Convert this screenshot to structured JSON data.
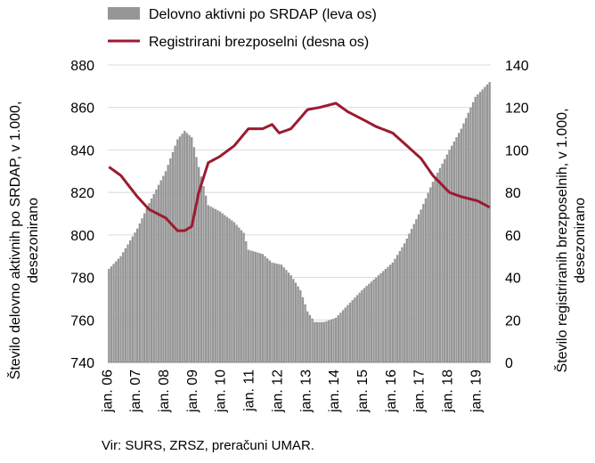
{
  "chart_data": {
    "type": "bar+line",
    "legend_position": "top",
    "grid": true,
    "source": "Vir: SURS, ZRSZ, preračuni UMAR.",
    "x_tick_labels": [
      "jan. 06",
      "jan. 07",
      "jan. 08",
      "jan. 09",
      "jan. 10",
      "jan. 11",
      "jan. 12",
      "jan. 13",
      "jan. 14",
      "jan. 15",
      "jan. 16",
      "jan. 17",
      "jan. 18",
      "jan. 19"
    ],
    "x_range": [
      "2006-01",
      "2019-06"
    ],
    "left_axis": {
      "label": "Število delovno aktivnih po SRDAP, v 1.000, desezonirano",
      "ylim": [
        740,
        880
      ],
      "ticks": [
        740,
        760,
        780,
        800,
        820,
        840,
        860,
        880
      ]
    },
    "right_axis": {
      "label": "Število registriranih brezposelnih, v 1.000, desezonirano",
      "ylim": [
        0,
        140
      ],
      "ticks": [
        0,
        20,
        40,
        60,
        80,
        100,
        120,
        140
      ]
    },
    "series": [
      {
        "name": "Delovno aktivni po SRDAP (leva os)",
        "kind": "bar",
        "axis": "left",
        "color": "#969696",
        "monthly_keypoints": [
          [
            "2006-01",
            784
          ],
          [
            "2006-06",
            790
          ],
          [
            "2007-01",
            803
          ],
          [
            "2007-06",
            815
          ],
          [
            "2008-01",
            830
          ],
          [
            "2008-06",
            845
          ],
          [
            "2008-09",
            849
          ],
          [
            "2008-12",
            846
          ],
          [
            "2009-03",
            832
          ],
          [
            "2009-07",
            814
          ],
          [
            "2009-12",
            811
          ],
          [
            "2010-06",
            806
          ],
          [
            "2010-10",
            801
          ],
          [
            "2010-12",
            793
          ],
          [
            "2011-06",
            791
          ],
          [
            "2011-10",
            787
          ],
          [
            "2012-02",
            786
          ],
          [
            "2012-06",
            781
          ],
          [
            "2012-10",
            774
          ],
          [
            "2013-01",
            764
          ],
          [
            "2013-04",
            759
          ],
          [
            "2013-08",
            759
          ],
          [
            "2014-01",
            761
          ],
          [
            "2014-06",
            767
          ],
          [
            "2014-12",
            774
          ],
          [
            "2015-06",
            780
          ],
          [
            "2016-01",
            787
          ],
          [
            "2016-06",
            796
          ],
          [
            "2017-01",
            812
          ],
          [
            "2017-06",
            825
          ],
          [
            "2018-01",
            840
          ],
          [
            "2018-06",
            850
          ],
          [
            "2018-12",
            865
          ],
          [
            "2019-06",
            872
          ]
        ]
      },
      {
        "name": "Registrirani brezposelni (desna os)",
        "kind": "line",
        "axis": "right",
        "color": "#9b1b30",
        "monthly_keypoints": [
          [
            "2006-01",
            92
          ],
          [
            "2006-06",
            88
          ],
          [
            "2007-01",
            78
          ],
          [
            "2007-06",
            72
          ],
          [
            "2008-01",
            68
          ],
          [
            "2008-06",
            62
          ],
          [
            "2008-09",
            62
          ],
          [
            "2008-12",
            64
          ],
          [
            "2009-03",
            80
          ],
          [
            "2009-07",
            94
          ],
          [
            "2009-12",
            97
          ],
          [
            "2010-06",
            102
          ],
          [
            "2010-12",
            110
          ],
          [
            "2011-06",
            110
          ],
          [
            "2011-10",
            112
          ],
          [
            "2012-01",
            108
          ],
          [
            "2012-06",
            110
          ],
          [
            "2013-01",
            119
          ],
          [
            "2013-06",
            120
          ],
          [
            "2014-01",
            122
          ],
          [
            "2014-06",
            118
          ],
          [
            "2015-01",
            114
          ],
          [
            "2015-06",
            111
          ],
          [
            "2016-01",
            108
          ],
          [
            "2016-06",
            103
          ],
          [
            "2017-01",
            96
          ],
          [
            "2017-06",
            88
          ],
          [
            "2018-01",
            80
          ],
          [
            "2018-06",
            78
          ],
          [
            "2019-01",
            76
          ],
          [
            "2019-06",
            73
          ]
        ]
      }
    ]
  }
}
